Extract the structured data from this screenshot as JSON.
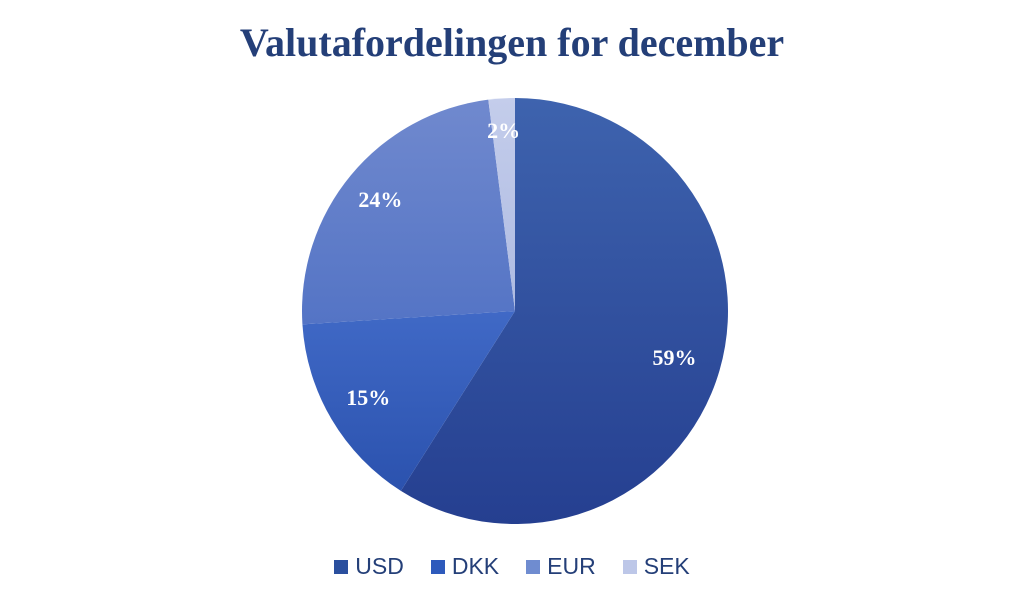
{
  "chart_data": {
    "type": "pie",
    "title": "Valutafordelingen for december",
    "title_color": "#243F78",
    "background": "#FFFFFF",
    "categories": [
      "USD",
      "DKK",
      "EUR",
      "SEK"
    ],
    "values": [
      59,
      15,
      24,
      2
    ],
    "data_labels": [
      "59%",
      "15%",
      "24%",
      "2%"
    ],
    "data_label_color": "#FFFFFF",
    "start_angle_deg": 0,
    "direction": "clockwise",
    "slice_gradients": [
      {
        "top": "#3E63AE",
        "bottom": "#253F90"
      },
      {
        "top": "#4069C6",
        "bottom": "#2B52AE"
      },
      {
        "top": "#7089CE",
        "bottom": "#5474C5"
      },
      {
        "top": "#C4CDEB",
        "bottom": "#AEBBE2"
      }
    ],
    "legend": {
      "position": "bottom",
      "text_color": "#243F78",
      "items": [
        {
          "label": "USD",
          "swatch": "#2A4F9E"
        },
        {
          "label": "DKK",
          "swatch": "#2E5ABC"
        },
        {
          "label": "EUR",
          "swatch": "#6F8CD0"
        },
        {
          "label": "SEK",
          "swatch": "#BDC7E8"
        }
      ]
    }
  }
}
